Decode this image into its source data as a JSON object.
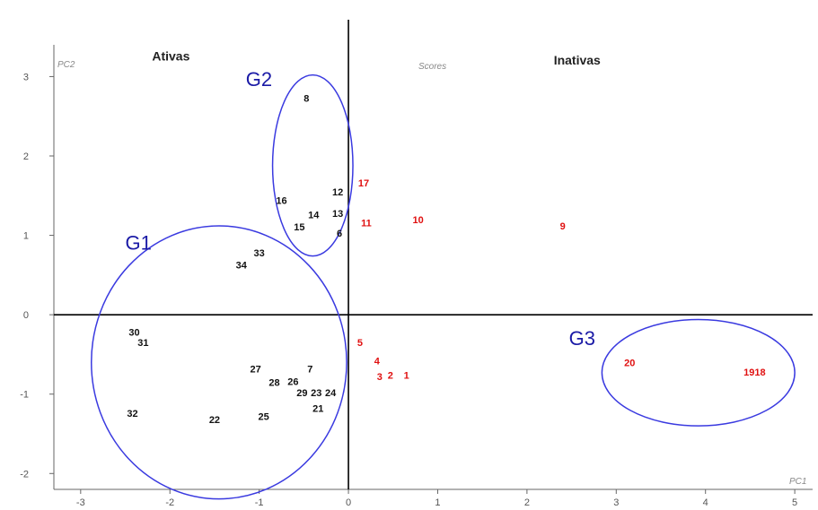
{
  "chart_data": {
    "type": "scatter",
    "title": "Scores",
    "xlabel": "PC1",
    "ylabel": "PC2",
    "xlim": [
      -3.3,
      5.2
    ],
    "ylim": [
      -2.2,
      3.4
    ],
    "x_ticks": [
      -3,
      -2,
      -1,
      0,
      1,
      2,
      3,
      4,
      5
    ],
    "y_ticks": [
      -2,
      -1,
      0,
      1,
      2,
      3
    ],
    "regions": [
      {
        "label": "Ativas",
        "x": -2.2,
        "y": 3.2
      },
      {
        "label": "Inativas",
        "x": 2.3,
        "y": 3.15
      }
    ],
    "series": [
      {
        "color": "#111111",
        "points": [
          {
            "label": "8",
            "x": -0.47,
            "y": 2.73
          },
          {
            "label": "12",
            "x": -0.12,
            "y": 1.55
          },
          {
            "label": "16",
            "x": -0.75,
            "y": 1.44
          },
          {
            "label": "14",
            "x": -0.39,
            "y": 1.26
          },
          {
            "label": "13",
            "x": -0.12,
            "y": 1.28
          },
          {
            "label": "15",
            "x": -0.55,
            "y": 1.11
          },
          {
            "label": "6",
            "x": -0.1,
            "y": 1.03
          },
          {
            "label": "33",
            "x": -1.0,
            "y": 0.78
          },
          {
            "label": "34",
            "x": -1.2,
            "y": 0.63
          },
          {
            "label": "30",
            "x": -2.4,
            "y": -0.22
          },
          {
            "label": "31",
            "x": -2.3,
            "y": -0.35
          },
          {
            "label": "27",
            "x": -1.04,
            "y": -0.68
          },
          {
            "label": "7",
            "x": -0.43,
            "y": -0.68
          },
          {
            "label": "28",
            "x": -0.83,
            "y": -0.85
          },
          {
            "label": "26",
            "x": -0.62,
            "y": -0.84
          },
          {
            "label": "29",
            "x": -0.52,
            "y": -0.98
          },
          {
            "label": "23",
            "x": -0.36,
            "y": -0.98
          },
          {
            "label": "24",
            "x": -0.2,
            "y": -0.98
          },
          {
            "label": "21",
            "x": -0.34,
            "y": -1.18
          },
          {
            "label": "32",
            "x": -2.42,
            "y": -1.24
          },
          {
            "label": "22",
            "x": -1.5,
            "y": -1.32
          },
          {
            "label": "25",
            "x": -0.95,
            "y": -1.28
          }
        ]
      },
      {
        "color": "#e01010",
        "points": [
          {
            "label": "17",
            "x": 0.17,
            "y": 1.66
          },
          {
            "label": "11",
            "x": 0.2,
            "y": 1.16
          },
          {
            "label": "10",
            "x": 0.78,
            "y": 1.2
          },
          {
            "label": "9",
            "x": 2.4,
            "y": 1.12
          },
          {
            "label": "5",
            "x": 0.13,
            "y": -0.35
          },
          {
            "label": "4",
            "x": 0.32,
            "y": -0.58
          },
          {
            "label": "3",
            "x": 0.35,
            "y": -0.78
          },
          {
            "label": "2",
            "x": 0.47,
            "y": -0.76
          },
          {
            "label": "1",
            "x": 0.65,
            "y": -0.76
          },
          {
            "label": "20",
            "x": 3.15,
            "y": -0.6
          },
          {
            "label": "1918",
            "x": 4.55,
            "y": -0.72
          }
        ]
      }
    ],
    "groups": [
      {
        "label": "G1",
        "cx": -1.45,
        "cy": -0.6,
        "rx": 1.43,
        "ry": 1.72,
        "label_x": -2.5,
        "label_y": 0.82
      },
      {
        "label": "G2",
        "cx": -0.4,
        "cy": 1.88,
        "rx": 0.45,
        "ry": 1.14,
        "label_x": -1.15,
        "label_y": 2.88
      },
      {
        "label": "G3",
        "cx": 3.92,
        "cy": -0.73,
        "rx": 1.08,
        "ry": 0.67,
        "label_x": 2.47,
        "label_y": -0.38
      }
    ]
  }
}
